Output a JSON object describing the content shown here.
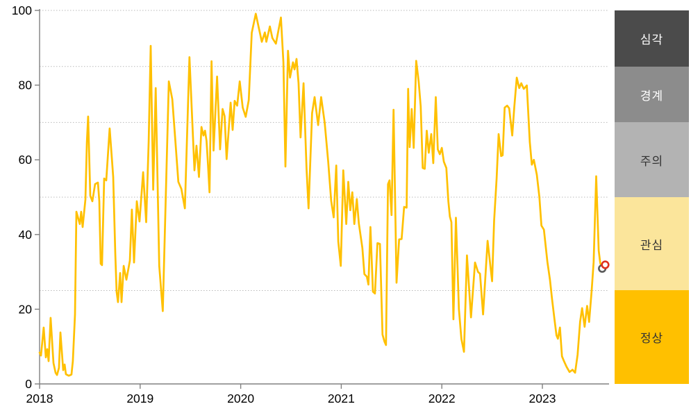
{
  "chart_data": {
    "type": "line",
    "x_axis": {
      "tick_labels": [
        "2018",
        "2019",
        "2020",
        "2021",
        "2022",
        "2023"
      ],
      "range": [
        2018,
        2023.66
      ],
      "grid": false
    },
    "y_axis": {
      "tick_labels": [
        "0",
        "20",
        "40",
        "60",
        "80",
        "100"
      ],
      "range": [
        0,
        100
      ],
      "gridlines": [
        25,
        50,
        70,
        85,
        100
      ],
      "grid_style": "dotted"
    },
    "colors": {
      "line": "#FFC000",
      "grid": "#b9b9b9",
      "axis": "#808080",
      "tick_text": "#000000"
    },
    "bands": [
      {
        "label": "심각",
        "from": 85,
        "to": 100,
        "color": "#4B4B4B",
        "text_color": "#FFFFFF"
      },
      {
        "label": "경계",
        "from": 70,
        "to": 85,
        "color": "#8C8C8C",
        "text_color": "#FFFFFF"
      },
      {
        "label": "주의",
        "from": 50,
        "to": 70,
        "color": "#B3B3B3",
        "text_color": "#333333"
      },
      {
        "label": "관심",
        "from": 25,
        "to": 50,
        "color": "#FBE59B",
        "text_color": "#333333"
      },
      {
        "label": "정상",
        "from": 0,
        "to": 25,
        "color": "#FFC000",
        "text_color": "#333333"
      }
    ],
    "markers": [
      {
        "name": "previous-point-marker",
        "t": 2023.595,
        "value": 30.9,
        "stroke": "#5A5A5A"
      },
      {
        "name": "latest-point-marker",
        "t": 2023.625,
        "value": 31.9,
        "stroke": "#E0301E"
      }
    ],
    "series": [
      {
        "color": "#FFC000",
        "points": [
          [
            2018.0,
            8.4
          ],
          [
            2018.014,
            7.6
          ],
          [
            2018.041,
            15.1
          ],
          [
            2018.062,
            7.1
          ],
          [
            2018.076,
            9.3
          ],
          [
            2018.09,
            6.1
          ],
          [
            2018.11,
            17.7
          ],
          [
            2018.138,
            5.6
          ],
          [
            2018.159,
            3.0
          ],
          [
            2018.173,
            2.4
          ],
          [
            2018.193,
            4.3
          ],
          [
            2018.207,
            13.8
          ],
          [
            2018.235,
            3.7
          ],
          [
            2018.249,
            5.2
          ],
          [
            2018.262,
            2.6
          ],
          [
            2018.29,
            2.2
          ],
          [
            2018.317,
            2.5
          ],
          [
            2018.331,
            6.1
          ],
          [
            2018.352,
            18.6
          ],
          [
            2018.366,
            46.1
          ],
          [
            2018.4,
            42.8
          ],
          [
            2018.414,
            46.1
          ],
          [
            2018.428,
            42.0
          ],
          [
            2018.456,
            49.4
          ],
          [
            2018.47,
            64.7
          ],
          [
            2018.483,
            71.6
          ],
          [
            2018.504,
            50.4
          ],
          [
            2018.525,
            48.9
          ],
          [
            2018.552,
            53.5
          ],
          [
            2018.58,
            53.9
          ],
          [
            2018.594,
            48.9
          ],
          [
            2018.608,
            32.2
          ],
          [
            2018.621,
            31.8
          ],
          [
            2018.642,
            55.0
          ],
          [
            2018.663,
            54.5
          ],
          [
            2018.697,
            68.4
          ],
          [
            2018.718,
            60.6
          ],
          [
            2018.732,
            55.4
          ],
          [
            2018.753,
            34.9
          ],
          [
            2018.766,
            24.7
          ],
          [
            2018.78,
            21.9
          ],
          [
            2018.801,
            29.7
          ],
          [
            2018.815,
            21.9
          ],
          [
            2018.836,
            31.6
          ],
          [
            2018.863,
            27.9
          ],
          [
            2018.898,
            33.0
          ],
          [
            2018.918,
            46.7
          ],
          [
            2018.939,
            32.5
          ],
          [
            2018.967,
            48.9
          ],
          [
            2018.994,
            43.5
          ],
          [
            2019.03,
            56.7
          ],
          [
            2019.06,
            43.3
          ],
          [
            2019.085,
            65.0
          ],
          [
            2019.105,
            90.5
          ],
          [
            2019.13,
            52.0
          ],
          [
            2019.155,
            79.2
          ],
          [
            2019.19,
            31.6
          ],
          [
            2019.225,
            19.5
          ],
          [
            2019.255,
            50.0
          ],
          [
            2019.285,
            81.0
          ],
          [
            2019.32,
            76.2
          ],
          [
            2019.35,
            65.1
          ],
          [
            2019.38,
            54.1
          ],
          [
            2019.41,
            52.2
          ],
          [
            2019.445,
            47.0
          ],
          [
            2019.49,
            87.5
          ],
          [
            2019.54,
            57.2
          ],
          [
            2019.56,
            63.8
          ],
          [
            2019.585,
            55.4
          ],
          [
            2019.61,
            68.8
          ],
          [
            2019.63,
            66.5
          ],
          [
            2019.645,
            67.8
          ],
          [
            2019.66,
            65.1
          ],
          [
            2019.675,
            58.7
          ],
          [
            2019.69,
            51.3
          ],
          [
            2019.71,
            86.4
          ],
          [
            2019.73,
            62.5
          ],
          [
            2019.765,
            82.3
          ],
          [
            2019.795,
            62.8
          ],
          [
            2019.82,
            73.6
          ],
          [
            2019.84,
            71.7
          ],
          [
            2019.86,
            60.2
          ],
          [
            2019.9,
            75.3
          ],
          [
            2019.92,
            68.0
          ],
          [
            2019.94,
            75.8
          ],
          [
            2019.965,
            74.5
          ],
          [
            2019.99,
            81.0
          ],
          [
            2020.02,
            74.0
          ],
          [
            2020.05,
            71.5
          ],
          [
            2020.08,
            76.0
          ],
          [
            2020.11,
            94.0
          ],
          [
            2020.15,
            99.1
          ],
          [
            2020.21,
            91.6
          ],
          [
            2020.24,
            94.1
          ],
          [
            2020.255,
            91.6
          ],
          [
            2020.29,
            95.7
          ],
          [
            2020.315,
            92.6
          ],
          [
            2020.35,
            91.1
          ],
          [
            2020.4,
            98.1
          ],
          [
            2020.425,
            86.1
          ],
          [
            2020.445,
            58.2
          ],
          [
            2020.47,
            89.2
          ],
          [
            2020.49,
            82.0
          ],
          [
            2020.52,
            86.1
          ],
          [
            2020.535,
            84.2
          ],
          [
            2020.555,
            87.0
          ],
          [
            2020.575,
            80.5
          ],
          [
            2020.595,
            66.0
          ],
          [
            2020.625,
            80.5
          ],
          [
            2020.655,
            57.6
          ],
          [
            2020.675,
            47.0
          ],
          [
            2020.71,
            72.5
          ],
          [
            2020.735,
            76.8
          ],
          [
            2020.77,
            69.3
          ],
          [
            2020.8,
            76.8
          ],
          [
            2020.835,
            70.0
          ],
          [
            2020.87,
            59.5
          ],
          [
            2020.9,
            49.0
          ],
          [
            2020.925,
            44.6
          ],
          [
            2020.95,
            58.5
          ],
          [
            2020.97,
            38.1
          ],
          [
            2020.995,
            31.6
          ],
          [
            2021.02,
            57.2
          ],
          [
            2021.05,
            42.8
          ],
          [
            2021.07,
            54.1
          ],
          [
            2021.09,
            46.5
          ],
          [
            2021.11,
            51.3
          ],
          [
            2021.13,
            42.8
          ],
          [
            2021.155,
            49.5
          ],
          [
            2021.175,
            43.0
          ],
          [
            2021.21,
            36.4
          ],
          [
            2021.23,
            29.4
          ],
          [
            2021.255,
            28.7
          ],
          [
            2021.27,
            26.6
          ],
          [
            2021.29,
            42.0
          ],
          [
            2021.315,
            24.7
          ],
          [
            2021.335,
            24.2
          ],
          [
            2021.36,
            37.7
          ],
          [
            2021.385,
            37.5
          ],
          [
            2021.41,
            13.2
          ],
          [
            2021.43,
            11.3
          ],
          [
            2021.445,
            10.4
          ],
          [
            2021.465,
            53.5
          ],
          [
            2021.48,
            54.5
          ],
          [
            2021.5,
            45.2
          ],
          [
            2021.52,
            73.4
          ],
          [
            2021.55,
            27.1
          ],
          [
            2021.575,
            38.7
          ],
          [
            2021.6,
            38.8
          ],
          [
            2021.625,
            47.4
          ],
          [
            2021.65,
            47.2
          ],
          [
            2021.665,
            79.0
          ],
          [
            2021.68,
            63.4
          ],
          [
            2021.7,
            73.6
          ],
          [
            2021.72,
            63.2
          ],
          [
            2021.745,
            86.5
          ],
          [
            2021.77,
            80.9
          ],
          [
            2021.79,
            74.3
          ],
          [
            2021.81,
            57.8
          ],
          [
            2021.83,
            57.6
          ],
          [
            2021.85,
            67.8
          ],
          [
            2021.87,
            61.9
          ],
          [
            2021.895,
            66.9
          ],
          [
            2021.915,
            59.1
          ],
          [
            2021.94,
            76.8
          ],
          [
            2021.96,
            62.8
          ],
          [
            2021.98,
            61.5
          ],
          [
            2022.0,
            63.2
          ],
          [
            2022.02,
            59.5
          ],
          [
            2022.045,
            57.8
          ],
          [
            2022.065,
            48.9
          ],
          [
            2022.08,
            44.8
          ],
          [
            2022.095,
            43.3
          ],
          [
            2022.115,
            17.3
          ],
          [
            2022.14,
            44.5
          ],
          [
            2022.17,
            20.0
          ],
          [
            2022.195,
            12.0
          ],
          [
            2022.22,
            8.6
          ],
          [
            2022.25,
            34.4
          ],
          [
            2022.29,
            17.8
          ],
          [
            2022.33,
            32.5
          ],
          [
            2022.36,
            30.0
          ],
          [
            2022.38,
            29.5
          ],
          [
            2022.41,
            18.6
          ],
          [
            2022.455,
            38.3
          ],
          [
            2022.5,
            27.5
          ],
          [
            2022.52,
            43.7
          ],
          [
            2022.545,
            55.0
          ],
          [
            2022.565,
            66.9
          ],
          [
            2022.59,
            61.0
          ],
          [
            2022.605,
            61.2
          ],
          [
            2022.625,
            74.0
          ],
          [
            2022.65,
            74.5
          ],
          [
            2022.67,
            73.8
          ],
          [
            2022.7,
            66.5
          ],
          [
            2022.72,
            74.0
          ],
          [
            2022.745,
            82.0
          ],
          [
            2022.77,
            79.2
          ],
          [
            2022.79,
            80.5
          ],
          [
            2022.815,
            79.0
          ],
          [
            2022.845,
            79.9
          ],
          [
            2022.875,
            64.7
          ],
          [
            2022.895,
            58.7
          ],
          [
            2022.915,
            60.0
          ],
          [
            2022.945,
            56.0
          ],
          [
            2022.97,
            50.0
          ],
          [
            2022.99,
            42.4
          ],
          [
            2023.015,
            41.3
          ],
          [
            2023.05,
            32.7
          ],
          [
            2023.075,
            27.9
          ],
          [
            2023.095,
            22.9
          ],
          [
            2023.12,
            17.3
          ],
          [
            2023.14,
            13.0
          ],
          [
            2023.155,
            12.1
          ],
          [
            2023.175,
            15.1
          ],
          [
            2023.195,
            7.4
          ],
          [
            2023.215,
            6.1
          ],
          [
            2023.24,
            4.6
          ],
          [
            2023.27,
            3.2
          ],
          [
            2023.3,
            3.8
          ],
          [
            2023.325,
            3.0
          ],
          [
            2023.35,
            7.8
          ],
          [
            2023.375,
            16.6
          ],
          [
            2023.395,
            20.3
          ],
          [
            2023.42,
            15.3
          ],
          [
            2023.445,
            20.9
          ],
          [
            2023.465,
            16.6
          ],
          [
            2023.49,
            25.1
          ],
          [
            2023.51,
            32.6
          ],
          [
            2023.535,
            55.6
          ],
          [
            2023.56,
            35.7
          ],
          [
            2023.575,
            32.4
          ],
          [
            2023.595,
            30.9
          ]
        ]
      }
    ]
  }
}
